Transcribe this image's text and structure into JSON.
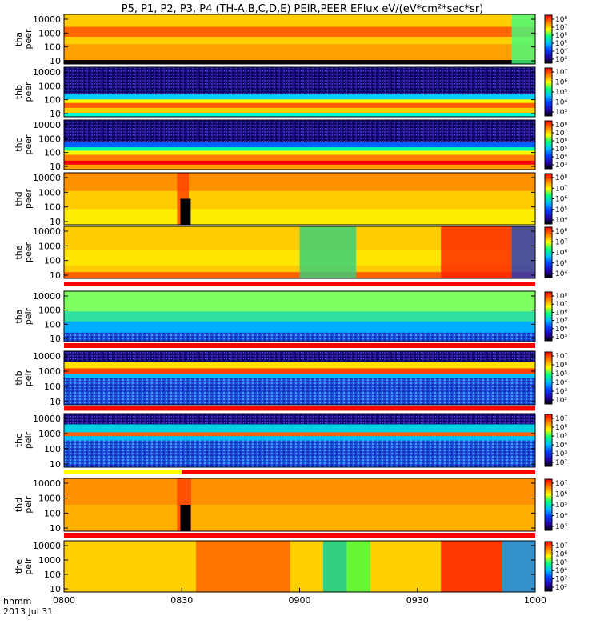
{
  "chart_data": {
    "type": "heatmap",
    "title": "P5, P1, P2, P3, P4 (TH-A,B,C,D,E) PEIR,PEER EFlux eV/(eV*cm²*sec*sr)",
    "x_label_left": "hhmm",
    "date_label": "2013 Jul 31",
    "x_ticks": [
      "0800",
      "0830",
      "0900",
      "0930",
      "1000"
    ],
    "y_scale": "log",
    "colorbar_scale": "log",
    "colormap": [
      "#000000",
      "#2400a0",
      "#0040ff",
      "#00c0ff",
      "#00ff80",
      "#ffff00",
      "#ff8000",
      "#ff0000"
    ],
    "panels": [
      {
        "ylabel": [
          "tha",
          "peer"
        ],
        "yticks": [
          "10000",
          "1000",
          "100",
          "10"
        ],
        "cbar_ticks": [
          "10⁸",
          "10⁷",
          "10⁶",
          "10⁵",
          "10⁴",
          "10³"
        ]
      },
      {
        "ylabel": [
          "thb",
          "peer"
        ],
        "yticks": [
          "10000",
          "1000",
          "100",
          "10"
        ],
        "cbar_ticks": [
          "10⁷",
          "10⁶",
          "10⁵",
          "10⁴",
          "10³"
        ]
      },
      {
        "ylabel": [
          "thc",
          "peer"
        ],
        "yticks": [
          "10000",
          "1000",
          "100",
          "10"
        ],
        "cbar_ticks": [
          "10⁸",
          "10⁷",
          "10⁶",
          "10⁵",
          "10⁴",
          "10³"
        ]
      },
      {
        "ylabel": [
          "thd",
          "peer"
        ],
        "yticks": [
          "10000",
          "1000",
          "100",
          "10"
        ],
        "cbar_ticks": [
          "10⁸",
          "10⁷",
          "10⁶",
          "10⁵",
          "10⁴"
        ]
      },
      {
        "ylabel": [
          "the",
          "peer"
        ],
        "yticks": [
          "10000",
          "1000",
          "100",
          "10"
        ],
        "cbar_ticks": [
          "10⁸",
          "10⁷",
          "10⁶",
          "10⁵",
          "10⁴"
        ]
      },
      {
        "ylabel": [
          "tha",
          "peir"
        ],
        "yticks": [
          "10000",
          "1000",
          "100",
          "10"
        ],
        "cbar_ticks": [
          "10⁸",
          "10⁷",
          "10⁶",
          "10⁵",
          "10⁴",
          "10³"
        ]
      },
      {
        "ylabel": [
          "thb",
          "peir"
        ],
        "yticks": [
          "10000",
          "1000",
          "100",
          "10"
        ],
        "cbar_ticks": [
          "10⁷",
          "10⁶",
          "10⁵",
          "10⁴",
          "10³",
          "10²"
        ]
      },
      {
        "ylabel": [
          "thc",
          "peir"
        ],
        "yticks": [
          "10000",
          "1000",
          "100",
          "10"
        ],
        "cbar_ticks": [
          "10⁷",
          "10⁶",
          "10⁵",
          "10⁴",
          "10³",
          "10²"
        ]
      },
      {
        "ylabel": [
          "thd",
          "peir"
        ],
        "yticks": [
          "10000",
          "1000",
          "100",
          "10"
        ],
        "cbar_ticks": [
          "10⁷",
          "10⁶",
          "10⁵",
          "10⁴",
          "10³"
        ]
      },
      {
        "ylabel": [
          "the",
          "peir"
        ],
        "yticks": [
          "10000",
          "1000",
          "100",
          "10"
        ],
        "cbar_ticks": [
          "10⁷",
          "10⁶",
          "10⁵",
          "10⁴",
          "10³",
          "10²"
        ]
      }
    ]
  }
}
